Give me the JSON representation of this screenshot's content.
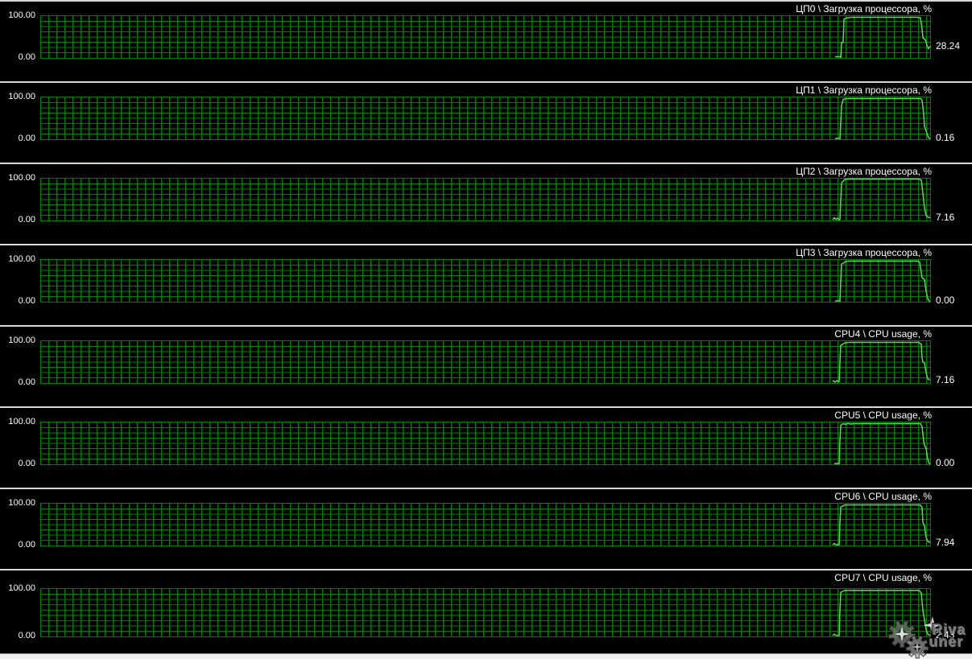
{
  "colors": {
    "background": "#000000",
    "grid": "#008000",
    "line": "#55DD55",
    "text": "#FFFFFF",
    "divider": "#D8D8D8",
    "bottom_bar": "#F0F0F0"
  },
  "axis": {
    "max_label": "100.00",
    "min_label": "0.00"
  },
  "watermark": {
    "name": "RivaTuner logo",
    "text_top": "Riva",
    "text_bottom": "uner",
    "icons": [
      "gear-icon",
      "gear-icon",
      "sparkle-icon"
    ]
  },
  "chart_data": [
    {
      "id": "cpu0",
      "type": "line",
      "title": "ЦП0 \\ Загрузка процессора, %",
      "ylim": [
        0,
        100
      ],
      "y_max_label": "100.00",
      "y_min_label": "0.00",
      "current_value": "28.24",
      "grid": true,
      "points_pct": [
        [
          986,
          3
        ],
        [
          992,
          3
        ],
        [
          993,
          1
        ],
        [
          994,
          37
        ],
        [
          996,
          37
        ],
        [
          997,
          93
        ],
        [
          1001,
          96
        ],
        [
          1006,
          97
        ],
        [
          1088,
          97
        ],
        [
          1092,
          96
        ],
        [
          1094,
          70
        ],
        [
          1095,
          48
        ],
        [
          1097,
          45
        ],
        [
          1098,
          44
        ],
        [
          1100,
          30
        ],
        [
          1102,
          22
        ],
        [
          1104,
          28
        ]
      ]
    },
    {
      "id": "cpu1",
      "type": "line",
      "title": "ЦП1 \\ Загрузка процессора, %",
      "ylim": [
        0,
        100
      ],
      "y_max_label": "100.00",
      "y_min_label": "0.00",
      "current_value": "0.16",
      "grid": true,
      "points_pct": [
        [
          986,
          2
        ],
        [
          991,
          2
        ],
        [
          992,
          1
        ],
        [
          993,
          40
        ],
        [
          994,
          80
        ],
        [
          996,
          95
        ],
        [
          1000,
          97
        ],
        [
          1092,
          97
        ],
        [
          1094,
          93
        ],
        [
          1096,
          60
        ],
        [
          1097,
          30
        ],
        [
          1099,
          20
        ],
        [
          1101,
          8
        ],
        [
          1103,
          2
        ],
        [
          1104,
          1
        ]
      ]
    },
    {
      "id": "cpu2",
      "type": "line",
      "title": "ЦП2 \\ Загрузка процессора, %",
      "ylim": [
        0,
        100
      ],
      "y_max_label": "100.00",
      "y_min_label": "0.00",
      "current_value": "7.16",
      "grid": true,
      "points_pct": [
        [
          983,
          2
        ],
        [
          985,
          7
        ],
        [
          987,
          2
        ],
        [
          989,
          6
        ],
        [
          991,
          2
        ],
        [
          992,
          2
        ],
        [
          993,
          50
        ],
        [
          994,
          90
        ],
        [
          998,
          98
        ],
        [
          1003,
          99
        ],
        [
          1090,
          99
        ],
        [
          1093,
          97
        ],
        [
          1095,
          65
        ],
        [
          1097,
          30
        ],
        [
          1099,
          12
        ],
        [
          1101,
          8
        ],
        [
          1104,
          7
        ]
      ]
    },
    {
      "id": "cpu3",
      "type": "line",
      "title": "ЦП3 \\ Загрузка процессора, %",
      "ylim": [
        0,
        100
      ],
      "y_max_label": "100.00",
      "y_min_label": "0.00",
      "current_value": "0.00",
      "grid": true,
      "points_pct": [
        [
          986,
          2
        ],
        [
          991,
          2
        ],
        [
          992,
          1
        ],
        [
          993,
          50
        ],
        [
          994,
          90
        ],
        [
          999,
          96
        ],
        [
          1004,
          97
        ],
        [
          1088,
          97
        ],
        [
          1091,
          95
        ],
        [
          1093,
          70
        ],
        [
          1094,
          57
        ],
        [
          1096,
          55
        ],
        [
          1097,
          53
        ],
        [
          1099,
          25
        ],
        [
          1101,
          8
        ],
        [
          1103,
          1
        ],
        [
          1104,
          0
        ]
      ]
    },
    {
      "id": "cpu4",
      "type": "line",
      "title": "CPU4 \\ CPU usage, %",
      "ylim": [
        0,
        100
      ],
      "y_max_label": "100.00",
      "y_min_label": "0.00",
      "current_value": "7.16",
      "grid": true,
      "points_pct": [
        [
          983,
          6
        ],
        [
          986,
          2
        ],
        [
          988,
          6
        ],
        [
          990,
          3
        ],
        [
          991,
          3
        ],
        [
          992,
          50
        ],
        [
          993,
          90
        ],
        [
          998,
          96
        ],
        [
          1003,
          97
        ],
        [
          1090,
          97
        ],
        [
          1093,
          93
        ],
        [
          1094,
          60
        ],
        [
          1095,
          50
        ],
        [
          1097,
          48
        ],
        [
          1099,
          25
        ],
        [
          1101,
          10
        ],
        [
          1104,
          7
        ]
      ]
    },
    {
      "id": "cpu5",
      "type": "line",
      "title": "CPU5 \\ CPU usage, %",
      "ylim": [
        0,
        100
      ],
      "y_max_label": "100.00",
      "y_min_label": "0.00",
      "current_value": "0.00",
      "grid": true,
      "points_pct": [
        [
          985,
          2
        ],
        [
          990,
          2
        ],
        [
          991,
          1
        ],
        [
          992,
          55
        ],
        [
          993,
          93
        ],
        [
          996,
          97
        ],
        [
          999,
          95
        ],
        [
          1002,
          98
        ],
        [
          1005,
          96
        ],
        [
          1009,
          97
        ],
        [
          1092,
          97
        ],
        [
          1094,
          90
        ],
        [
          1096,
          55
        ],
        [
          1097,
          45
        ],
        [
          1099,
          38
        ],
        [
          1101,
          12
        ],
        [
          1103,
          2
        ],
        [
          1104,
          0
        ]
      ]
    },
    {
      "id": "cpu6",
      "type": "line",
      "title": "CPU6 \\ CPU usage, %",
      "ylim": [
        0,
        100
      ],
      "y_max_label": "100.00",
      "y_min_label": "0.00",
      "current_value": "7.94",
      "grid": true,
      "points_pct": [
        [
          983,
          2
        ],
        [
          985,
          5
        ],
        [
          987,
          2
        ],
        [
          991,
          2
        ],
        [
          992,
          55
        ],
        [
          993,
          92
        ],
        [
          998,
          97
        ],
        [
          1092,
          97
        ],
        [
          1094,
          91
        ],
        [
          1095,
          55
        ],
        [
          1097,
          47
        ],
        [
          1099,
          20
        ],
        [
          1101,
          10
        ],
        [
          1103,
          8
        ],
        [
          1104,
          8
        ]
      ]
    },
    {
      "id": "cpu7",
      "type": "line",
      "title": "CPU7 \\ CPU usage, %",
      "ylim": [
        0,
        100
      ],
      "y_max_label": "100.00",
      "y_min_label": "0.00",
      "current_value": "2.43",
      "grid": true,
      "points_pct": [
        [
          983,
          2
        ],
        [
          985,
          5
        ],
        [
          987,
          2
        ],
        [
          991,
          2
        ],
        [
          992,
          55
        ],
        [
          993,
          93
        ],
        [
          998,
          97
        ],
        [
          1090,
          97
        ],
        [
          1093,
          92
        ],
        [
          1095,
          55
        ],
        [
          1097,
          35
        ],
        [
          1099,
          15
        ],
        [
          1101,
          5
        ],
        [
          1104,
          2
        ]
      ]
    }
  ]
}
